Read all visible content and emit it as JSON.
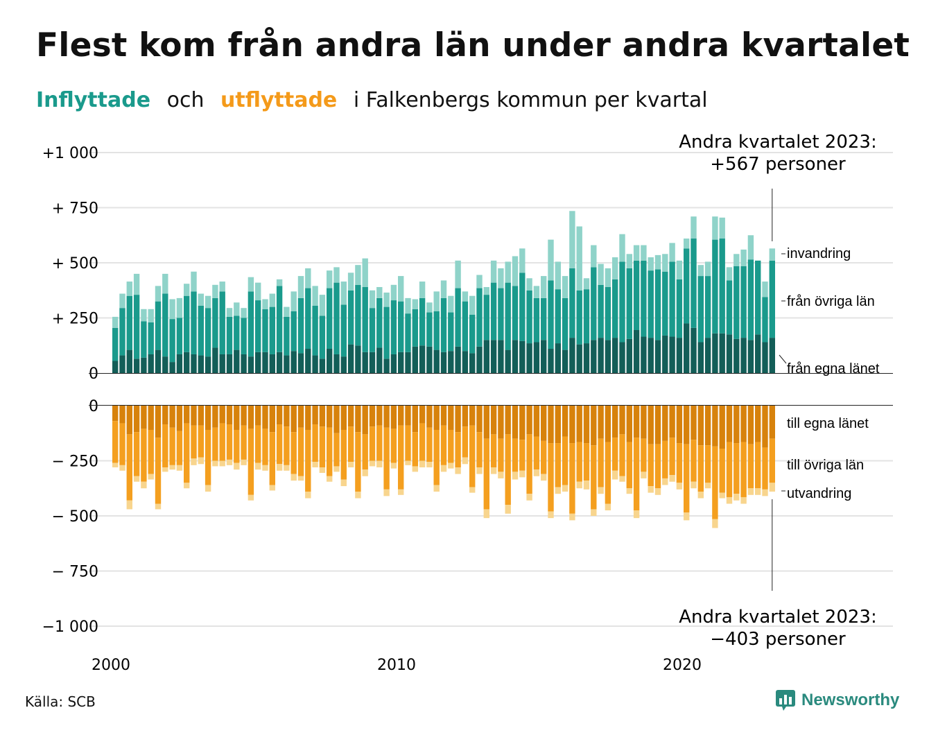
{
  "title": "Flest kom från andra län under andra kvartalet",
  "subtitle": {
    "inflyttade": "Inflyttade",
    "och": "och",
    "utflyttade": "utflyttade",
    "rest": "i Falkenbergs kommun per kvartal"
  },
  "source": "Källa: SCB",
  "brand": "Newsworthy",
  "colors": {
    "in_egna": "#135e58",
    "in_ovriga": "#1a9a8c",
    "in_invandring": "#8fd3c9",
    "ut_egna": "#d7820c",
    "ut_ovriga": "#f49f1f",
    "ut_utvandring": "#f8d58e",
    "grid": "#e3e3e3"
  },
  "annotations": {
    "top_line1": "Andra kvartalet 2023:",
    "top_line2": "+567 personer",
    "bottom_line1": "Andra kvartalet 2023:",
    "bottom_line2": "−403 personer"
  },
  "chart_data": {
    "type": "bar",
    "x_start": "2000 Q1",
    "x_ticks": [
      "2000",
      "2010",
      "2020"
    ],
    "y_ticks_top": [
      "+1 000",
      "+  750",
      "+  500",
      "+  250",
      "0"
    ],
    "y_ticks_bottom": [
      "0",
      "−  250",
      "−  500",
      "−  750",
      "−1 000"
    ],
    "ylim_top": [
      0,
      1000
    ],
    "ylim_bottom": [
      -1000,
      0
    ],
    "legend_in": [
      "invandring",
      "från övriga län",
      "från egna länet"
    ],
    "legend_out": [
      "till egna länet",
      "till övriga län",
      "utvandring"
    ],
    "inflyttade": {
      "fran_egna_lanet": [
        55,
        80,
        105,
        65,
        70,
        85,
        105,
        75,
        50,
        85,
        95,
        85,
        80,
        75,
        115,
        85,
        85,
        105,
        85,
        75,
        95,
        95,
        85,
        95,
        80,
        100,
        90,
        110,
        80,
        65,
        110,
        85,
        75,
        130,
        125,
        95,
        95,
        115,
        65,
        85,
        95,
        95,
        120,
        125,
        120,
        105,
        95,
        100,
        120,
        100,
        90,
        120,
        150,
        150,
        150,
        105,
        150,
        145,
        135,
        140,
        150,
        110,
        135,
        105,
        160,
        130,
        135,
        150,
        160,
        150,
        160,
        140,
        155,
        195,
        165,
        160,
        150,
        170,
        165,
        160,
        225,
        205,
        140,
        160,
        180,
        180,
        175,
        155,
        160,
        150,
        175,
        140,
        160
      ],
      "fran_ovriga_lan": [
        150,
        215,
        245,
        290,
        165,
        145,
        220,
        285,
        195,
        165,
        255,
        285,
        225,
        220,
        225,
        285,
        170,
        155,
        165,
        295,
        235,
        195,
        215,
        300,
        175,
        180,
        250,
        275,
        225,
        195,
        275,
        325,
        235,
        245,
        275,
        295,
        200,
        225,
        235,
        245,
        230,
        175,
        170,
        215,
        155,
        175,
        245,
        175,
        265,
        225,
        175,
        265,
        205,
        260,
        235,
        305,
        245,
        310,
        240,
        200,
        190,
        310,
        245,
        235,
        315,
        245,
        245,
        330,
        240,
        240,
        265,
        365,
        320,
        315,
        345,
        305,
        320,
        290,
        340,
        265,
        340,
        405,
        300,
        280,
        425,
        430,
        245,
        330,
        325,
        365,
        335,
        205,
        350
      ],
      "invandring": [
        50,
        65,
        65,
        95,
        55,
        60,
        70,
        90,
        90,
        90,
        55,
        90,
        55,
        55,
        60,
        45,
        40,
        60,
        45,
        65,
        80,
        45,
        60,
        30,
        45,
        90,
        100,
        90,
        90,
        95,
        80,
        70,
        105,
        80,
        90,
        130,
        80,
        50,
        65,
        70,
        115,
        70,
        45,
        75,
        45,
        90,
        80,
        75,
        125,
        45,
        85,
        60,
        35,
        100,
        90,
        95,
        135,
        110,
        55,
        55,
        100,
        185,
        125,
        100,
        260,
        290,
        50,
        100,
        95,
        85,
        100,
        125,
        65,
        70,
        70,
        60,
        65,
        80,
        85,
        85,
        45,
        100,
        50,
        65,
        105,
        95,
        60,
        55,
        75,
        110,
        0,
        70,
        55
      ]
    },
    "utflyttade": {
      "till_egna_lanet": [
        70,
        80,
        130,
        120,
        105,
        110,
        145,
        85,
        100,
        115,
        80,
        90,
        90,
        110,
        100,
        80,
        85,
        110,
        90,
        105,
        90,
        105,
        120,
        85,
        95,
        120,
        100,
        110,
        85,
        95,
        100,
        125,
        110,
        95,
        120,
        130,
        95,
        90,
        100,
        105,
        90,
        90,
        120,
        80,
        100,
        110,
        90,
        110,
        120,
        95,
        90,
        120,
        150,
        130,
        150,
        130,
        150,
        155,
        130,
        140,
        160,
        170,
        170,
        140,
        170,
        165,
        170,
        180,
        150,
        165,
        145,
        130,
        165,
        145,
        150,
        175,
        175,
        160,
        145,
        170,
        175,
        155,
        180,
        180,
        185,
        195,
        165,
        170,
        165,
        175,
        165,
        190,
        150
      ],
      "till_ovriga_lan": [
        190,
        190,
        300,
        200,
        240,
        200,
        300,
        195,
        170,
        155,
        270,
        150,
        145,
        250,
        150,
        170,
        160,
        150,
        155,
        300,
        170,
        165,
        240,
        180,
        175,
        190,
        220,
        280,
        170,
        185,
        220,
        150,
        225,
        160,
        270,
        160,
        155,
        160,
        280,
        155,
        290,
        160,
        155,
        170,
        155,
        250,
        180,
        150,
        160,
        140,
        280,
        160,
        320,
        150,
        150,
        320,
        150,
        140,
        270,
        150,
        150,
        310,
        200,
        220,
        320,
        180,
        170,
        290,
        220,
        280,
        150,
        190,
        210,
        330,
        150,
        190,
        200,
        170,
        170,
        180,
        310,
        190,
        210,
        170,
        330,
        200,
        250,
        230,
        250,
        200,
        210,
        190,
        200
      ],
      "utvandring": [
        20,
        25,
        40,
        25,
        30,
        25,
        25,
        20,
        20,
        25,
        25,
        30,
        30,
        30,
        25,
        25,
        25,
        30,
        25,
        25,
        30,
        25,
        25,
        30,
        25,
        30,
        20,
        30,
        25,
        25,
        25,
        25,
        30,
        25,
        30,
        30,
        25,
        30,
        30,
        25,
        25,
        20,
        25,
        30,
        25,
        30,
        30,
        25,
        30,
        30,
        25,
        30,
        40,
        30,
        30,
        40,
        35,
        30,
        30,
        30,
        30,
        30,
        30,
        30,
        30,
        30,
        40,
        30,
        30,
        30,
        40,
        25,
        25,
        35,
        30,
        30,
        30,
        30,
        30,
        30,
        35,
        30,
        30,
        25,
        40,
        25,
        30,
        30,
        30,
        30,
        30,
        30,
        40
      ]
    }
  }
}
